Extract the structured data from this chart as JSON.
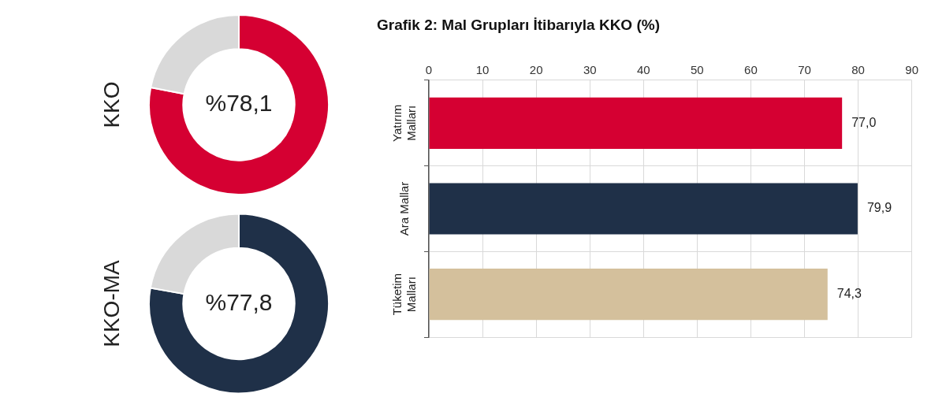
{
  "chart_data": [
    {
      "type": "donut",
      "title": "KKO",
      "categories": [
        null,
        null
      ],
      "values": [
        78.1,
        21.9
      ],
      "colors": [
        "#d50032",
        "#d9d9d9"
      ],
      "value_labels": [
        "%78,1",
        null
      ]
    },
    {
      "type": "donut",
      "title": "KKO-MA",
      "categories": [
        null,
        null
      ],
      "values": [
        77.8,
        22.2
      ],
      "colors": [
        "#1f3048",
        "#d9d9d9"
      ],
      "value_labels": [
        "%77,8",
        null
      ]
    },
    {
      "type": "bar",
      "orientation": "horizontal",
      "title": "Grafik 2: Mal Grupları İtibarıyla KKO (%)",
      "categories": [
        "Yatırım Malları",
        "Ara Mallar",
        "Tüketim Malları"
      ],
      "values": [
        77.0,
        79.9,
        74.3
      ],
      "colors": [
        "#d50032",
        "#1f3048",
        "#d4c09c"
      ],
      "value_labels": [
        "77,0",
        "79,9",
        "74,3"
      ],
      "xlim": [
        0,
        90
      ],
      "xticks": [
        0,
        10,
        20,
        30,
        40,
        50,
        60,
        70,
        80,
        90
      ],
      "grid": true
    }
  ]
}
